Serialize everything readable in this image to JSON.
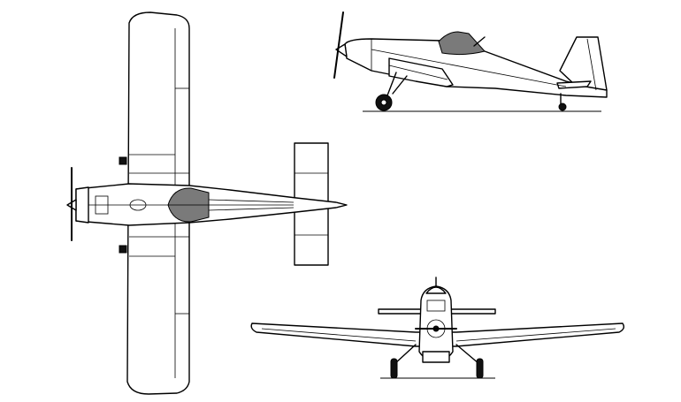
{
  "drawing": {
    "subject": "",
    "views": [
      {
        "name": "top-view"
      },
      {
        "name": "side-view"
      },
      {
        "name": "front-view"
      }
    ],
    "line_color": "#000000",
    "canopy_color": "#7a7a7a",
    "background": "#ffffff"
  }
}
